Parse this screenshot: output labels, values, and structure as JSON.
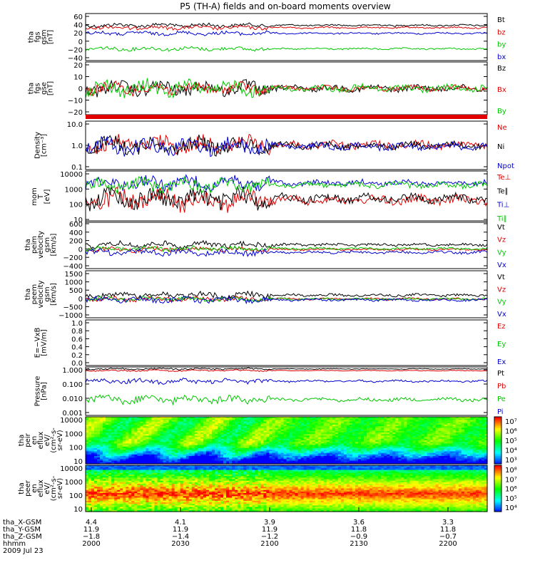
{
  "title": "P5 (TH-A) fields and on-board moments overview",
  "colors": {
    "black": "#000000",
    "red": "#e00000",
    "green": "#00c800",
    "blue": "#0000d0",
    "frame": "#000000"
  },
  "chart_data": [
    {
      "type": "line",
      "panel": "fgs-gsm",
      "ylabel_lines": [
        "tha",
        "fgs",
        "gsm",
        "[nT]"
      ],
      "yticks": [
        "60",
        "40",
        "20",
        "0",
        "−20",
        "−40"
      ],
      "ylim": [
        -40,
        60
      ],
      "series": [
        {
          "name": "Bt",
          "color": "#000000",
          "level": 35,
          "amp": 5
        },
        {
          "name": "bz",
          "color": "#e00000",
          "level": 30,
          "amp": 5
        },
        {
          "name": "by",
          "color": "#00c800",
          "level": -15,
          "amp": 5
        },
        {
          "name": "bx",
          "color": "#0000d0",
          "level": 18,
          "amp": 5
        }
      ]
    },
    {
      "type": "line",
      "panel": "fgs-dsl",
      "ylabel_lines": [
        "tha",
        "fgs",
        "gse",
        "[nT]"
      ],
      "yticks": [
        "20",
        "10",
        "0",
        "−10",
        "−20"
      ],
      "ylim": [
        -25,
        25
      ],
      "series": [
        {
          "name": "Bz",
          "color": "#000000",
          "level": 0,
          "amp": 8
        },
        {
          "name": "Bx",
          "color": "#e00000",
          "level": 0,
          "amp": 7
        },
        {
          "name": "By",
          "color": "#00c800",
          "level": 0,
          "amp": 9
        }
      ]
    },
    {
      "type": "line",
      "panel": "density",
      "ylabel_lines": [
        "Density",
        "[cm⁻³]"
      ],
      "yticks": [
        "10.0",
        "1.0",
        "0.1"
      ],
      "log": true,
      "ylim": [
        0.1,
        20
      ],
      "series": [
        {
          "name": "Ne",
          "color": "#e00000",
          "level": 1.5,
          "amp": 1.0
        },
        {
          "name": "Ni",
          "color": "#000000",
          "level": 1.4,
          "amp": 1.0
        },
        {
          "name": "Npot",
          "color": "#0000d0",
          "level": 1.3,
          "amp": 1.0
        }
      ]
    },
    {
      "type": "line",
      "panel": "temperature",
      "ylabel_lines": [
        "mom",
        "T",
        "[eV]"
      ],
      "yticks": [
        "10000",
        "1000",
        "100",
        "10"
      ],
      "log": true,
      "ylim": [
        10,
        10000
      ],
      "series": [
        {
          "name": "Te⊥",
          "color": "#e00000",
          "level": 200,
          "amp": 1.2
        },
        {
          "name": "Te∥",
          "color": "#000000",
          "level": 250,
          "amp": 1.2
        },
        {
          "name": "Ti⊥",
          "color": "#0000d0",
          "level": 2000,
          "amp": 0.8
        },
        {
          "name": "Ti∥",
          "color": "#00c800",
          "level": 1500,
          "amp": 0.8
        }
      ]
    },
    {
      "type": "line",
      "panel": "peim-velocity",
      "ylabel_lines": [
        "tha",
        "peim",
        "velocity",
        "gsm",
        "[km/s]"
      ],
      "yticks": [
        "600",
        "400",
        "200",
        "0",
        "−200",
        "−400"
      ],
      "ylim": [
        -400,
        600
      ],
      "series": [
        {
          "name": "Vt",
          "color": "#000000",
          "level": 100,
          "amp": 80
        },
        {
          "name": "Vz",
          "color": "#e00000",
          "level": 0,
          "amp": 60
        },
        {
          "name": "Vy",
          "color": "#00c800",
          "level": 20,
          "amp": 60
        },
        {
          "name": "Vx",
          "color": "#0000d0",
          "level": -60,
          "amp": 80
        }
      ]
    },
    {
      "type": "line",
      "panel": "peem-velocity",
      "ylabel_lines": [
        "tha",
        "peem",
        "velocity",
        "gsm",
        "[km/s]"
      ],
      "yticks": [
        "1500",
        "1000",
        "500",
        "0",
        "−500",
        "−1000"
      ],
      "ylim": [
        -1000,
        1500
      ],
      "series": [
        {
          "name": "Vt",
          "color": "#000000",
          "level": 200,
          "amp": 200
        },
        {
          "name": "Vz",
          "color": "#e00000",
          "level": 0,
          "amp": 150
        },
        {
          "name": "Vy",
          "color": "#00c800",
          "level": 0,
          "amp": 150
        },
        {
          "name": "Vx",
          "color": "#0000d0",
          "level": -50,
          "amp": 180
        }
      ]
    },
    {
      "type": "line",
      "panel": "e-field",
      "ylabel_lines": [
        "E=−VxB",
        "[mV/m]"
      ],
      "yticks": [
        "1.0",
        "0.8",
        "0.6",
        "0.4",
        "0.2",
        "0.0"
      ],
      "ylim": [
        0,
        1
      ],
      "series": [
        {
          "name": "Ez",
          "color": "#e00000"
        },
        {
          "name": "Ey",
          "color": "#00c800"
        },
        {
          "name": "Ex",
          "color": "#0000d0"
        }
      ]
    },
    {
      "type": "line",
      "panel": "pressure",
      "ylabel_lines": [
        "Pressure",
        "[nPa]"
      ],
      "yticks": [
        "1.000",
        "0.100",
        "0.010",
        "0.001"
      ],
      "log": true,
      "ylim": [
        0.001,
        1.2
      ],
      "series": [
        {
          "name": "Pt",
          "color": "#000000",
          "level": 0.9,
          "amp": 0.1
        },
        {
          "name": "Pb",
          "color": "#e00000",
          "level": 0.7,
          "amp": 0.1
        },
        {
          "name": "Pe",
          "color": "#00c800",
          "level": 0.01,
          "amp": 0.5
        },
        {
          "name": "Pi",
          "color": "#0000d0",
          "level": 0.15,
          "amp": 0.3
        }
      ]
    },
    {
      "type": "heatmap",
      "panel": "peir-spectrogram",
      "ylabel_lines": [
        "tha",
        "peir",
        "en",
        "eflux",
        "eV/",
        "(cm²-s-",
        "sr-eV)"
      ],
      "yticks": [
        "10000",
        "1000",
        "100",
        "10"
      ],
      "colorbar_labels": [
        "10⁷",
        "10⁶",
        "10⁵",
        "10⁴",
        "10³"
      ]
    },
    {
      "type": "heatmap",
      "panel": "peer-spectrogram",
      "ylabel_lines": [
        "tha",
        "peer",
        "en",
        "eflux",
        "eV/",
        "(cm²-s-",
        "sr-eV)"
      ],
      "yticks": [
        "10000",
        "1000",
        "100",
        "10"
      ],
      "colorbar_labels": [
        "10⁸",
        "10⁷",
        "10⁶",
        "10⁵",
        "10⁴"
      ]
    }
  ],
  "x_axis": {
    "rows": [
      {
        "label": "tha_X-GSM",
        "values": [
          "4.4",
          "4.1",
          "3.9",
          "3.6",
          "3.3"
        ]
      },
      {
        "label": "tha_Y-GSM",
        "values": [
          "11.9",
          "11.9",
          "11.9",
          "11.8",
          "11.8"
        ]
      },
      {
        "label": "tha_Z-GSM",
        "values": [
          "−1.8",
          "−1.4",
          "−1.2",
          "−0.9",
          "−0.7"
        ]
      },
      {
        "label": "hhmm",
        "values": [
          "2000",
          "2030",
          "2100",
          "2130",
          "2200"
        ]
      }
    ],
    "date": "2009 Jul 23"
  }
}
